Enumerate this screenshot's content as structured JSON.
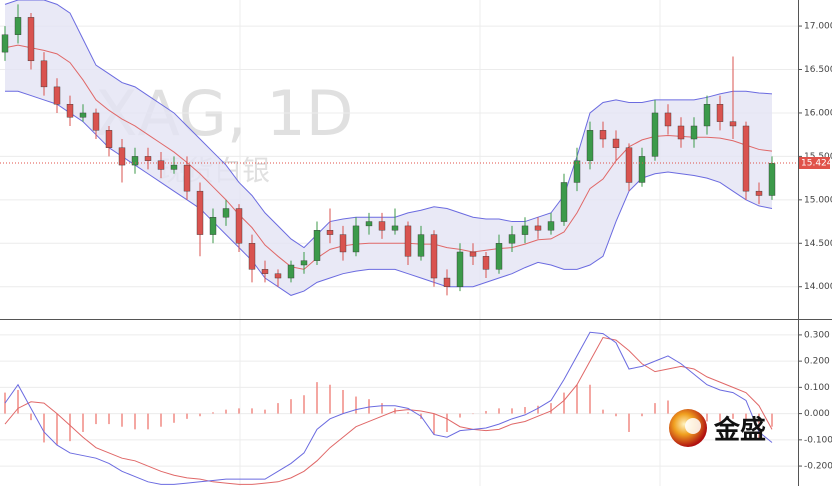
{
  "chart_data": [
    {
      "type": "candlestick",
      "watermark": "XAG, 1D",
      "subtitle": "现货白银",
      "open": [
        16.7,
        16.9,
        17.1,
        16.6,
        16.3,
        16.1,
        15.95,
        16.0,
        15.8,
        15.6,
        15.4,
        15.5,
        15.45,
        15.35,
        15.4,
        15.1,
        14.6,
        14.8,
        14.9,
        14.5,
        14.2,
        14.15,
        14.1,
        14.25,
        14.3,
        14.65,
        14.6,
        14.4,
        14.7,
        14.75,
        14.65,
        14.7,
        14.35,
        14.6,
        14.1,
        14.0,
        14.4,
        14.35,
        14.2,
        14.5,
        14.6,
        14.7,
        14.65,
        14.75,
        15.2,
        15.45,
        15.8,
        15.7,
        15.6,
        15.2,
        15.5,
        16.0,
        15.85,
        15.7,
        15.85,
        16.1,
        15.9,
        15.85,
        15.1,
        15.05
      ],
      "high": [
        17.0,
        17.25,
        17.15,
        16.7,
        16.4,
        16.2,
        16.1,
        16.05,
        15.85,
        15.7,
        15.6,
        15.6,
        15.55,
        15.5,
        15.5,
        15.2,
        14.9,
        15.0,
        14.95,
        14.6,
        14.3,
        14.2,
        14.3,
        14.4,
        14.75,
        14.9,
        14.7,
        14.8,
        14.85,
        14.85,
        14.9,
        14.75,
        14.7,
        14.65,
        14.2,
        14.5,
        14.5,
        14.4,
        14.6,
        14.7,
        14.8,
        14.8,
        14.85,
        15.3,
        15.6,
        15.9,
        15.9,
        15.8,
        15.65,
        15.6,
        16.15,
        16.1,
        15.95,
        15.95,
        16.2,
        16.2,
        16.65,
        15.9,
        15.2,
        15.5
      ],
      "low": [
        16.6,
        16.8,
        16.5,
        16.2,
        16.0,
        15.85,
        15.9,
        15.7,
        15.5,
        15.2,
        15.3,
        15.35,
        15.25,
        15.3,
        15.0,
        14.35,
        14.5,
        14.7,
        14.4,
        14.05,
        14.05,
        14.0,
        14.05,
        14.15,
        14.25,
        14.5,
        14.3,
        14.35,
        14.6,
        14.55,
        14.6,
        14.25,
        14.3,
        14.0,
        13.9,
        13.95,
        14.25,
        14.1,
        14.15,
        14.4,
        14.5,
        14.55,
        14.6,
        14.7,
        15.1,
        15.35,
        15.6,
        15.45,
        15.1,
        15.15,
        15.45,
        15.75,
        15.6,
        15.6,
        15.75,
        15.8,
        15.7,
        15.0,
        14.95,
        15.0
      ],
      "close": [
        16.9,
        17.1,
        16.6,
        16.3,
        16.1,
        15.95,
        16.0,
        15.8,
        15.6,
        15.4,
        15.5,
        15.45,
        15.35,
        15.4,
        15.1,
        14.6,
        14.8,
        14.9,
        14.5,
        14.2,
        14.15,
        14.1,
        14.25,
        14.3,
        14.65,
        14.6,
        14.4,
        14.7,
        14.75,
        14.65,
        14.7,
        14.35,
        14.6,
        14.1,
        14.0,
        14.4,
        14.35,
        14.2,
        14.5,
        14.6,
        14.7,
        14.65,
        14.75,
        15.2,
        15.45,
        15.8,
        15.7,
        15.6,
        15.2,
        15.5,
        16.0,
        15.85,
        15.7,
        15.85,
        16.1,
        15.9,
        15.85,
        15.1,
        15.05,
        15.42
      ],
      "up_color": "#3c9a4a",
      "down_color": "#d9534f",
      "bollinger": {
        "upper": [
          17.25,
          17.3,
          17.3,
          17.3,
          17.25,
          17.15,
          16.85,
          16.55,
          16.45,
          16.35,
          16.3,
          16.2,
          16.1,
          16.0,
          15.85,
          15.7,
          15.55,
          15.4,
          15.2,
          15.05,
          14.85,
          14.7,
          14.55,
          14.45,
          14.6,
          14.75,
          14.78,
          14.8,
          14.8,
          14.8,
          14.8,
          14.85,
          14.88,
          14.92,
          14.9,
          14.85,
          14.8,
          14.78,
          14.78,
          14.75,
          14.75,
          14.8,
          14.85,
          15.05,
          15.5,
          16.0,
          16.12,
          16.15,
          16.12,
          16.12,
          16.15,
          16.15,
          16.15,
          16.15,
          16.18,
          16.22,
          16.25,
          16.25,
          16.23,
          16.22
        ],
        "middle": [
          16.75,
          16.78,
          16.75,
          16.72,
          16.68,
          16.58,
          16.38,
          16.15,
          16.03,
          15.93,
          15.85,
          15.75,
          15.65,
          15.55,
          15.43,
          15.3,
          15.15,
          15.0,
          14.83,
          14.68,
          14.48,
          14.35,
          14.23,
          14.2,
          14.33,
          14.43,
          14.47,
          14.49,
          14.5,
          14.5,
          14.5,
          14.5,
          14.49,
          14.49,
          14.45,
          14.43,
          14.4,
          14.42,
          14.44,
          14.45,
          14.49,
          14.54,
          14.55,
          14.63,
          14.85,
          15.13,
          15.24,
          15.45,
          15.61,
          15.69,
          15.73,
          15.74,
          15.73,
          15.72,
          15.72,
          15.71,
          15.68,
          15.63,
          15.58,
          15.56
        ],
        "lower": [
          16.25,
          16.25,
          16.2,
          16.15,
          16.1,
          16.0,
          15.9,
          15.75,
          15.6,
          15.5,
          15.4,
          15.3,
          15.2,
          15.1,
          15.0,
          14.9,
          14.75,
          14.6,
          14.45,
          14.3,
          14.1,
          14.0,
          13.9,
          13.95,
          14.05,
          14.1,
          14.15,
          14.18,
          14.2,
          14.2,
          14.2,
          14.15,
          14.1,
          14.05,
          14.0,
          14.0,
          14.0,
          14.05,
          14.1,
          14.15,
          14.22,
          14.28,
          14.25,
          14.2,
          14.2,
          14.25,
          14.35,
          14.75,
          15.1,
          15.25,
          15.3,
          15.32,
          15.3,
          15.28,
          15.25,
          15.2,
          15.1,
          15.0,
          14.93,
          14.9
        ],
        "band_color": "#6b6be0",
        "middle_color": "#e06868",
        "fill": "#e4e4f4"
      },
      "last_price": 15.424,
      "last_price_color": "#e0524a",
      "ylim": [
        13.64,
        17.3
      ],
      "yticks": [
        {
          "value": 14,
          "label": "14.000"
        },
        {
          "value": 14.5,
          "label": "14.500"
        },
        {
          "value": 15,
          "label": "15.000"
        },
        {
          "value": 15.5,
          "label": "15.500"
        },
        {
          "value": 16,
          "label": "16.000"
        },
        {
          "value": 16.5,
          "label": "16.500"
        },
        {
          "value": 17,
          "label": "17.000"
        }
      ],
      "grid": true
    },
    {
      "type": "macd",
      "macd": {
        "color": "#6b6be0",
        "values": [
          0.04,
          0.11,
          0.02,
          -0.07,
          -0.12,
          -0.15,
          -0.16,
          -0.17,
          -0.19,
          -0.22,
          -0.24,
          -0.26,
          -0.27,
          -0.27,
          -0.265,
          -0.26,
          -0.255,
          -0.25,
          -0.25,
          -0.25,
          -0.25,
          -0.22,
          -0.19,
          -0.15,
          -0.06,
          -0.02,
          0.0,
          0.015,
          0.025,
          0.03,
          0.03,
          0.02,
          -0.01,
          -0.08,
          -0.09,
          -0.065,
          -0.06,
          -0.055,
          -0.04,
          -0.02,
          -0.005,
          0.02,
          0.05,
          0.13,
          0.22,
          0.31,
          0.305,
          0.27,
          0.17,
          0.18,
          0.2,
          0.22,
          0.19,
          0.15,
          0.11,
          0.09,
          0.08,
          0.05,
          -0.07,
          -0.11
        ]
      },
      "signal": {
        "color": "#e06868",
        "values": [
          -0.04,
          0.02,
          0.045,
          0.04,
          0.0,
          -0.045,
          -0.09,
          -0.13,
          -0.15,
          -0.17,
          -0.18,
          -0.2,
          -0.22,
          -0.235,
          -0.245,
          -0.25,
          -0.26,
          -0.265,
          -0.27,
          -0.27,
          -0.265,
          -0.26,
          -0.245,
          -0.22,
          -0.18,
          -0.13,
          -0.09,
          -0.05,
          -0.03,
          -0.01,
          0.01,
          0.015,
          0.01,
          0.0,
          -0.02,
          -0.05,
          -0.06,
          -0.065,
          -0.06,
          -0.04,
          -0.03,
          -0.01,
          0.01,
          0.05,
          0.11,
          0.2,
          0.29,
          0.28,
          0.24,
          0.19,
          0.16,
          0.17,
          0.18,
          0.17,
          0.14,
          0.12,
          0.1,
          0.08,
          0.03,
          -0.06
        ]
      },
      "histogram": {
        "color": "#f08a84",
        "values": [
          0.08,
          0.09,
          -0.025,
          -0.11,
          -0.12,
          -0.105,
          -0.07,
          -0.04,
          -0.04,
          -0.05,
          -0.06,
          -0.06,
          -0.05,
          -0.035,
          -0.02,
          -0.01,
          0.005,
          0.015,
          0.02,
          0.02,
          0.015,
          0.04,
          0.055,
          0.07,
          0.12,
          0.11,
          0.09,
          0.065,
          0.055,
          0.04,
          0.02,
          0.005,
          -0.02,
          -0.08,
          -0.07,
          -0.015,
          0.0,
          0.01,
          0.02,
          0.02,
          0.025,
          0.03,
          0.04,
          0.08,
          0.11,
          0.11,
          0.015,
          -0.01,
          -0.07,
          -0.01,
          0.04,
          0.05,
          0.01,
          -0.02,
          -0.03,
          -0.03,
          -0.02,
          -0.03,
          -0.1,
          -0.05
        ]
      },
      "ylim": [
        -0.276,
        0.353
      ],
      "yticks": [
        {
          "value": -0.2,
          "label": "-0.200"
        },
        {
          "value": -0.1,
          "label": "-0.100"
        },
        {
          "value": 0,
          "label": "0.000"
        },
        {
          "value": 0.1,
          "label": "0.100"
        },
        {
          "value": 0.2,
          "label": "0.200"
        },
        {
          "value": 0.3,
          "label": "0.300"
        }
      ],
      "grid": true
    }
  ],
  "logo": {
    "text": "金盛"
  }
}
